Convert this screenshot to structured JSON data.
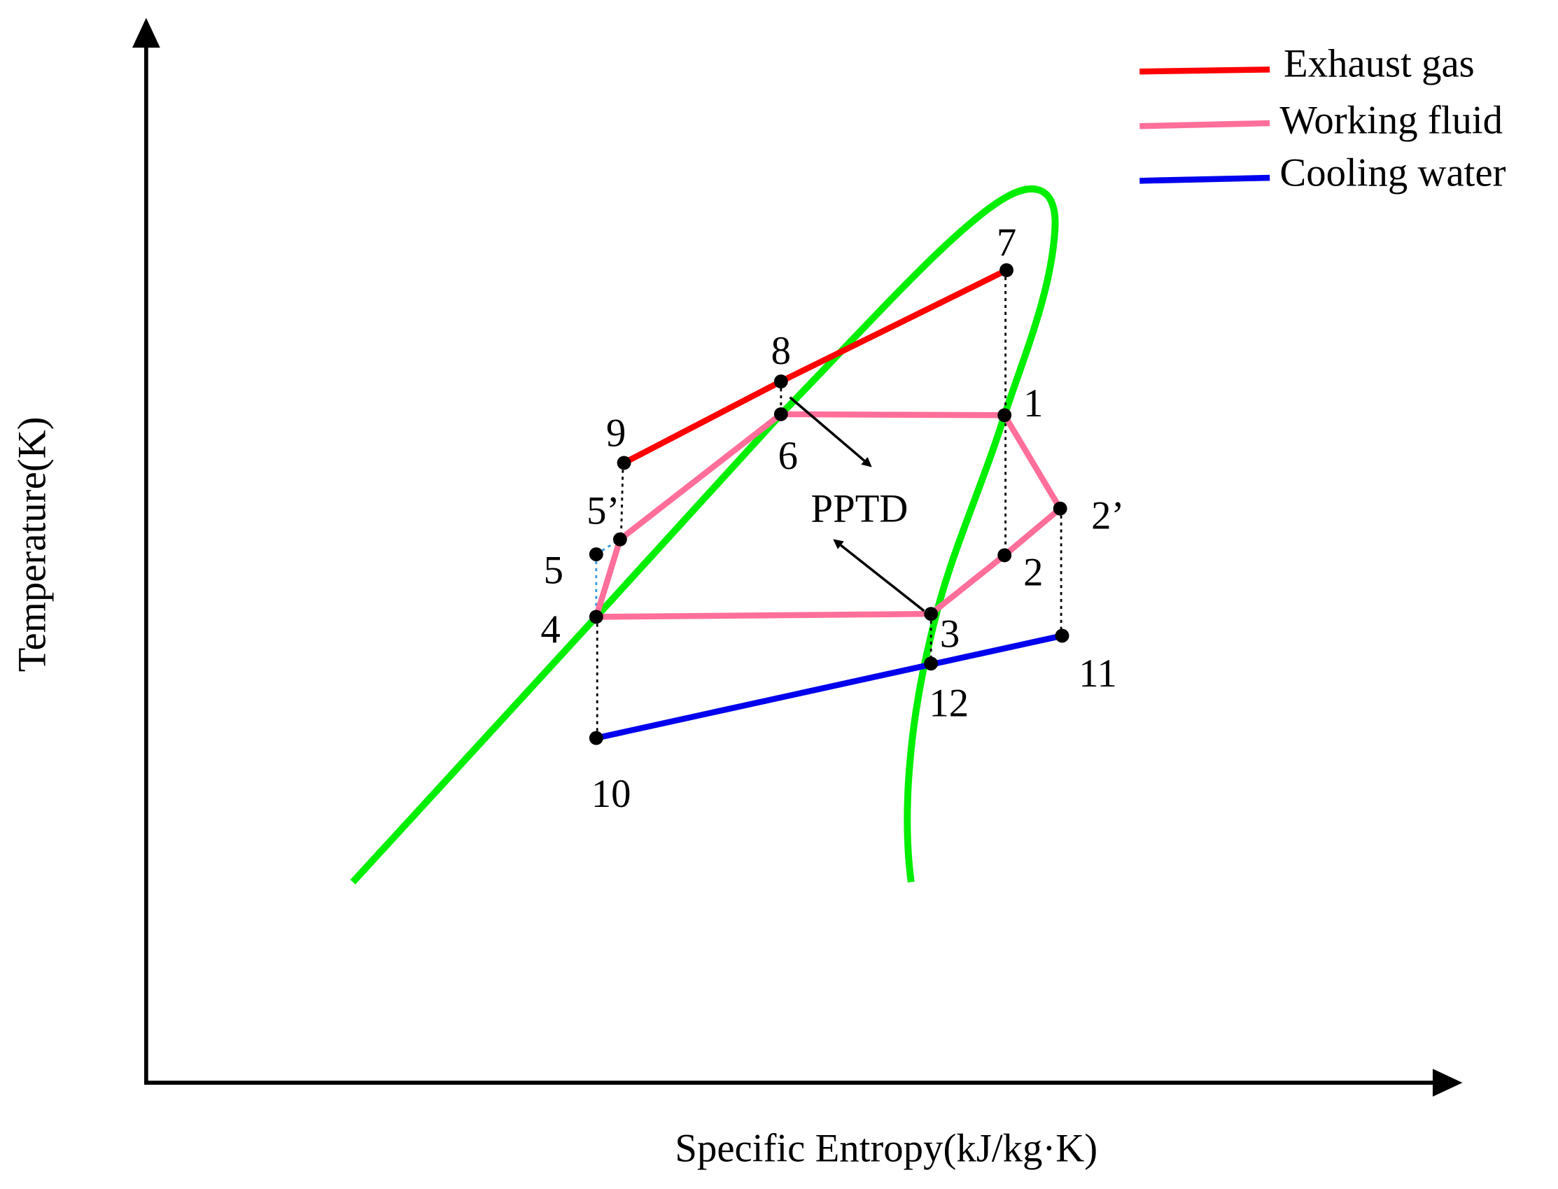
{
  "axes": {
    "x_label": "Specific Entropy(kJ/kg·K)",
    "y_label": "Temperature(K)"
  },
  "legend": [
    {
      "label": "Exhaust gas"
    },
    {
      "label": "Working fluid"
    },
    {
      "label": "Cooling water"
    }
  ],
  "points": [
    {
      "label": "1"
    },
    {
      "label": "2"
    },
    {
      "label": "2’"
    },
    {
      "label": "3"
    },
    {
      "label": "4"
    },
    {
      "label": "5"
    },
    {
      "label": "5’"
    },
    {
      "label": "6"
    },
    {
      "label": "7"
    },
    {
      "label": "8"
    },
    {
      "label": "9"
    },
    {
      "label": "10"
    },
    {
      "label": "11"
    },
    {
      "label": "12"
    }
  ],
  "annotation": "PPTD"
}
